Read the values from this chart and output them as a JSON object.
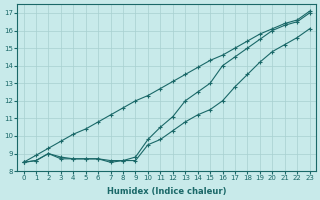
{
  "xlabel": "Humidex (Indice chaleur)",
  "ylabel": "",
  "background_color": "#c8eaea",
  "grid_color": "#a8d0d0",
  "line_color": "#1a6868",
  "xlim": [
    -0.5,
    23.5
  ],
  "ylim": [
    8.0,
    17.5
  ],
  "x_ticks": [
    0,
    1,
    2,
    3,
    4,
    5,
    6,
    7,
    8,
    9,
    10,
    11,
    12,
    13,
    14,
    15,
    16,
    17,
    18,
    19,
    20,
    21,
    22,
    23
  ],
  "y_ticks": [
    8,
    9,
    10,
    11,
    12,
    13,
    14,
    15,
    16,
    17
  ],
  "humidex": [
    0,
    1,
    2,
    3,
    4,
    5,
    6,
    7,
    8,
    9,
    10,
    11,
    12,
    13,
    14,
    15,
    16,
    17,
    18,
    19,
    20,
    21,
    22,
    23
  ],
  "line1_straight": [
    8.5,
    8.9,
    9.3,
    9.7,
    10.1,
    10.4,
    10.8,
    11.2,
    11.6,
    12.0,
    12.3,
    12.7,
    13.1,
    13.5,
    13.9,
    14.3,
    14.6,
    15.0,
    15.4,
    15.8,
    16.1,
    16.4,
    16.6,
    17.1
  ],
  "line2_mid": [
    8.5,
    8.6,
    9.0,
    8.8,
    8.7,
    8.7,
    8.7,
    8.6,
    8.6,
    8.8,
    9.8,
    10.5,
    11.1,
    12.0,
    12.5,
    13.0,
    14.0,
    14.5,
    15.0,
    15.5,
    16.0,
    16.3,
    16.5,
    17.0
  ],
  "line3_low": [
    8.5,
    8.6,
    9.0,
    8.7,
    8.7,
    8.7,
    8.7,
    8.5,
    8.6,
    8.6,
    9.5,
    9.8,
    10.3,
    10.8,
    11.2,
    11.5,
    12.0,
    12.8,
    13.5,
    14.2,
    14.8,
    15.2,
    15.6,
    16.1
  ]
}
